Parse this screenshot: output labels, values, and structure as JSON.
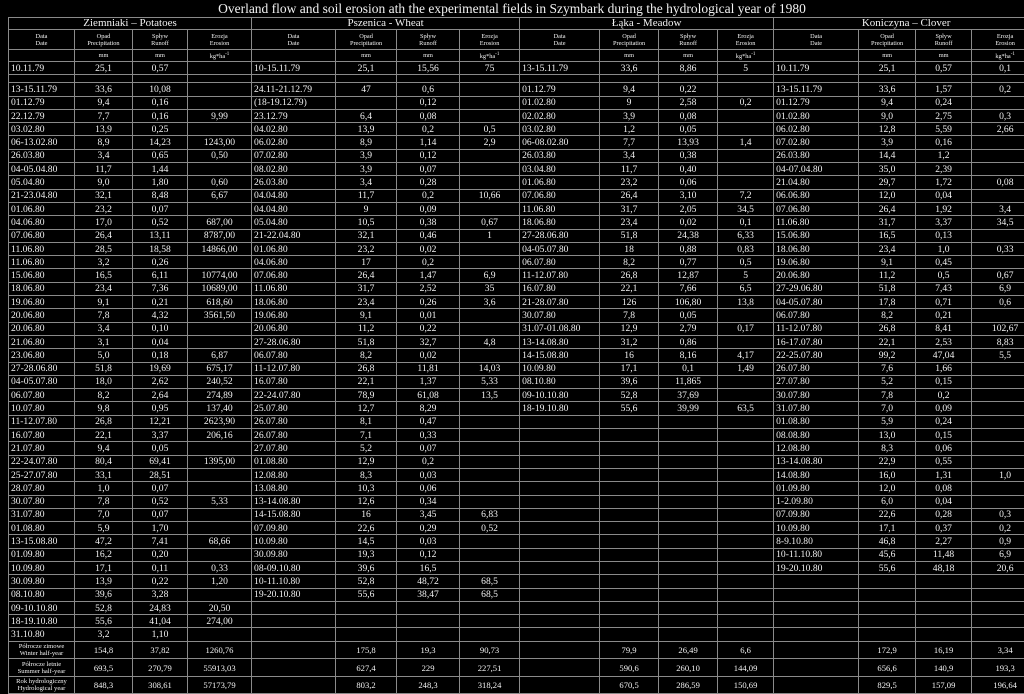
{
  "title": "Overland flow and soil erosion ath the experimental fields in Szymbark during the hydrological year of 1980",
  "crops": [
    "Ziemniaki – Potatoes",
    "Pszenica - Wheat",
    "Łąka - Meadow",
    "Koniczyna – Clover"
  ],
  "columns": [
    {
      "pl": "Data",
      "en": "Date",
      "unit": ""
    },
    {
      "pl": "Opad",
      "en": "Precipitation",
      "unit": "mm"
    },
    {
      "pl": "Spływ",
      "en": "Runoff",
      "unit": "mm"
    },
    {
      "pl": "Erozja",
      "en": "Erosion",
      "unit": "kg*ha",
      "unit_sup": "-1"
    }
  ],
  "rows": [
    [
      "10.11.79",
      "25,1",
      "0,57",
      "",
      "10-15.11.79",
      "25,1",
      "15,56",
      "75",
      "13-15.11.79",
      "33,6",
      "8,86",
      "5",
      "10.11.79",
      "25,1",
      "0,57",
      "0,1"
    ],
    [],
    [
      "13-15.11.79",
      "33,6",
      "10,08",
      "",
      "24.11-21.12.79",
      "47",
      "0,6",
      "",
      "01.12.79",
      "9,4",
      "0,22",
      "",
      "13-15.11.79",
      "33,6",
      "1,57",
      "0,2"
    ],
    [
      "01.12.79",
      "9,4",
      "0,16",
      "",
      "(18-19.12.79)",
      "",
      "0,12",
      "",
      "01.02.80",
      "9",
      "2,58",
      "0,2",
      "01.12.79",
      "9,4",
      "0,24",
      ""
    ],
    [
      "22.12.79",
      "7,7",
      "0,16",
      "9,99",
      "23.12.79",
      "6,4",
      "0,08",
      "",
      "02.02.80",
      "3,9",
      "0,08",
      "",
      "01.02.80",
      "9,0",
      "2,75",
      "0,3"
    ],
    [
      "03.02.80",
      "13,9",
      "0,25",
      "",
      "04.02.80",
      "13,9",
      "0,2",
      "0,5",
      "03.02.80",
      "1,2",
      "0,05",
      "",
      "06.02.80",
      "12,8",
      "5,59",
      "2,66"
    ],
    [
      "06-13.02.80",
      "8,9",
      "14,23",
      "1243,00",
      "06.02.80",
      "8,9",
      "1,14",
      "2,9",
      "06-08.02.80",
      "7,7",
      "13,93",
      "1,4",
      "07.02.80",
      "3,9",
      "0,16",
      ""
    ],
    [
      "26.03.80",
      "3,4",
      "0,65",
      "0,50",
      "07.02.80",
      "3,9",
      "0,12",
      "",
      "26.03.80",
      "3,4",
      "0,38",
      "",
      "26.03.80",
      "14,4",
      "1,2",
      ""
    ],
    [
      "04-05.04.80",
      "11,7",
      "1,44",
      "",
      "08.02.80",
      "3,9",
      "0,07",
      "",
      "03.04.80",
      "11,7",
      "0,40",
      "",
      "04-07.04.80",
      "35,0",
      "2,39",
      ""
    ],
    [
      "05.04.80",
      "9,0",
      "1,80",
      "0,60",
      "26.03.80",
      "3,4",
      "0,28",
      "",
      "01.06.80",
      "23,2",
      "0,06",
      "",
      "21.04.80",
      "29,7",
      "1,72",
      "0,08"
    ],
    [
      "21-23.04.80",
      "32,1",
      "8,48",
      "6,67",
      "04.04.80",
      "11,7",
      "0,2",
      "10,66",
      "07.06.80",
      "26,4",
      "3,10",
      "7,2",
      "06.06.80",
      "12,0",
      "0,04",
      ""
    ],
    [
      "01.06.80",
      "23,2",
      "0,07",
      "",
      "04.04.80",
      "9",
      "0,09",
      "",
      "11.06.80",
      "31,7",
      "2,05",
      "34,5",
      "07.06.80",
      "26,4",
      "1,92",
      "3,4"
    ],
    [
      "04.06.80",
      "17,0",
      "0,52",
      "687,00",
      "05.04.80",
      "10,5",
      "0,38",
      "0,67",
      "18.06.80",
      "23,4",
      "0,02",
      "0,1",
      "11.06.80",
      "31,7",
      "3,37",
      "34,5"
    ],
    [
      "07.06.80",
      "26,4",
      "13,11",
      "8787,00",
      "21-22.04.80",
      "32,1",
      "0,46",
      "1",
      "27-28.06.80",
      "51,8",
      "24,38",
      "6,33",
      "15.06.80",
      "16,5",
      "0,13",
      ""
    ],
    [
      "11.06.80",
      "28,5",
      "18,58",
      "14866,00",
      "01.06.80",
      "23,2",
      "0,02",
      "",
      "04-05.07.80",
      "18",
      "0,88",
      "0,83",
      "18.06.80",
      "23,4",
      "1,0",
      "0,33"
    ],
    [
      "11.06.80",
      "3,2",
      "0,26",
      "",
      "04.06.80",
      "17",
      "0,2",
      "",
      "06.07.80",
      "8,2",
      "0,77",
      "0,5",
      "19.06.80",
      "9,1",
      "0,45",
      ""
    ],
    [
      "15.06.80",
      "16,5",
      "6,11",
      "10774,00",
      "07.06.80",
      "26,4",
      "1,47",
      "6,9",
      "11-12.07.80",
      "26,8",
      "12,87",
      "5",
      "20.06.80",
      "11,2",
      "0,5",
      "0,67"
    ],
    [
      "18.06.80",
      "23,4",
      "7,36",
      "10689,00",
      "11.06.80",
      "31,7",
      "2,52",
      "35",
      "16.07.80",
      "22,1",
      "7,66",
      "6,5",
      "27-29.06.80",
      "51,8",
      "7,43",
      "6,9"
    ],
    [
      "19.06.80",
      "9,1",
      "0,21",
      "618,60",
      "18.06.80",
      "23,4",
      "0,26",
      "3,6",
      "21-28.07.80",
      "126",
      "106,80",
      "13,8",
      "04-05.07.80",
      "17,8",
      "0,71",
      "0,6"
    ],
    [
      "20.06.80",
      "7,8",
      "4,32",
      "3561,50",
      "19.06.80",
      "9,1",
      "0,01",
      "",
      "30.07.80",
      "7,8",
      "0,05",
      "",
      "06.07.80",
      "8,2",
      "0,21",
      ""
    ],
    [
      "20.06.80",
      "3,4",
      "0,10",
      "",
      "20.06.80",
      "11,2",
      "0,22",
      "",
      "31.07-01.08.80",
      "12,9",
      "2,79",
      "0,17",
      "11-12.07.80",
      "26,8",
      "8,41",
      "102,67"
    ],
    [
      "21.06.80",
      "3,1",
      "0,04",
      "",
      "27-28.06.80",
      "51,8",
      "32,7",
      "4,8",
      "13-14.08.80",
      "31,2",
      "0,86",
      "",
      "16-17.07.80",
      "22,1",
      "2,53",
      "8,83"
    ],
    [
      "23.06.80",
      "5,0",
      "0,18",
      "6,87",
      "06.07.80",
      "8,2",
      "0,02",
      "",
      "14-15.08.80",
      "16",
      "8,16",
      "4,17",
      "22-25.07.80",
      "99,2",
      "47,04",
      "5,5"
    ],
    [
      "27-28.06.80",
      "51,8",
      "19,69",
      "675,17",
      "11-12.07.80",
      "26,8",
      "11,81",
      "14,03",
      "10.09.80",
      "17,1",
      "0,1",
      "1,49",
      "26.07.80",
      "7,6",
      "1,66",
      ""
    ],
    [
      "04-05.07.80",
      "18,0",
      "2,62",
      "240,52",
      "16.07.80",
      "22,1",
      "1,37",
      "5,33",
      "08.10.80",
      "39,6",
      "11,865",
      "",
      "27.07.80",
      "5,2",
      "0,15",
      ""
    ],
    [
      "06.07.80",
      "8,2",
      "2,64",
      "274,89",
      "22-24.07.80",
      "78,9",
      "61,08",
      "13,5",
      "09-10.10.80",
      "52,8",
      "37,69",
      "",
      "30.07.80",
      "7,8",
      "0,2",
      ""
    ],
    [
      "10.07.80",
      "9,8",
      "0,95",
      "137,40",
      "25.07.80",
      "12,7",
      "8,29",
      "",
      "18-19.10.80",
      "55,6",
      "39,99",
      "63,5",
      "31.07.80",
      "7,0",
      "0,09",
      ""
    ],
    [
      "11-12.07.80",
      "26,8",
      "12,21",
      "2623,90",
      "26.07.80",
      "8,1",
      "0,47",
      "",
      "",
      "",
      "",
      "",
      "01.08.80",
      "5,9",
      "0,24",
      ""
    ],
    [
      "16.07.80",
      "22,1",
      "3,37",
      "206,16",
      "26.07.80",
      "7,1",
      "0,33",
      "",
      "",
      "",
      "",
      "",
      "08.08.80",
      "13,0",
      "0,15",
      ""
    ],
    [
      "21.07.80",
      "9,4",
      "0,05",
      "",
      "27.07.80",
      "5,2",
      "0,07",
      "",
      "",
      "",
      "",
      "",
      "12.08.80",
      "8,3",
      "0,06",
      ""
    ],
    [
      "22-24.07.80",
      "80,4",
      "69,41",
      "1395,00",
      "01.08.80",
      "12,9",
      "0,2",
      "",
      "",
      "",
      "",
      "",
      "13-14.08.80",
      "22,9",
      "0,55",
      ""
    ],
    [
      "25-27.07.80",
      "33,1",
      "28,51",
      "",
      "12.08.80",
      "8,3",
      "0,03",
      "",
      "",
      "",
      "",
      "",
      "14.08.80",
      "16,0",
      "1,31",
      "1,0"
    ],
    [
      "28.07.80",
      "1,0",
      "0,07",
      "",
      "13.08.80",
      "10,3",
      "0,06",
      "",
      "",
      "",
      "",
      "",
      "01.09.80",
      "12,0",
      "0,08",
      ""
    ],
    [
      "30.07.80",
      "7,8",
      "0,52",
      "5,33",
      "13-14.08.80",
      "12,6",
      "0,34",
      "",
      "",
      "",
      "",
      "",
      "1-2.09.80",
      "6,0",
      "0,04",
      ""
    ],
    [
      "31.07.80",
      "7,0",
      "0,07",
      "",
      "14-15.08.80",
      "16",
      "3,45",
      "6,83",
      "",
      "",
      "",
      "",
      "07.09.80",
      "22,6",
      "0,28",
      "0,3"
    ],
    [
      "01.08.80",
      "5,9",
      "1,70",
      "",
      "07.09.80",
      "22,6",
      "0,29",
      "0,52",
      "",
      "",
      "",
      "",
      "10.09.80",
      "17,1",
      "0,37",
      "0,2"
    ],
    [
      "13-15.08.80",
      "47,2",
      "7,41",
      "68,66",
      "10.09.80",
      "14,5",
      "0,03",
      "",
      "",
      "",
      "",
      "",
      "8-9.10.80",
      "46,8",
      "2,27",
      "0,9"
    ],
    [
      "01.09.80",
      "16,2",
      "0,20",
      "",
      "30.09.80",
      "19,3",
      "0,12",
      "",
      "",
      "",
      "",
      "",
      "10-11.10.80",
      "45,6",
      "11,48",
      "6,9"
    ],
    [
      "10.09.80",
      "17,1",
      "0,11",
      "0,33",
      "08-09.10.80",
      "39,6",
      "16,5",
      "",
      "",
      "",
      "",
      "",
      "19-20.10.80",
      "55,6",
      "48,18",
      "20,6"
    ],
    [
      "30.09.80",
      "13,9",
      "0,22",
      "1,20",
      "10-11.10.80",
      "52,8",
      "48,72",
      "68,5",
      "",
      "",
      "",
      "",
      "",
      "",
      "",
      ""
    ],
    [
      "08.10.80",
      "39,6",
      "3,28",
      "",
      "19-20.10.80",
      "55,6",
      "38,47",
      "68,5",
      "",
      "",
      "",
      "",
      "",
      "",
      "",
      ""
    ],
    [
      "09-10.10.80",
      "52,8",
      "24,83",
      "20,50",
      "",
      "",
      "",
      "",
      "",
      "",
      "",
      "",
      "",
      "",
      "",
      ""
    ],
    [
      "18-19.10.80",
      "55,6",
      "41,04",
      "274,00",
      "",
      "",
      "",
      "",
      "",
      "",
      "",
      "",
      "",
      "",
      "",
      ""
    ],
    [
      "31.10.80",
      "3,2",
      "1,10",
      "",
      "",
      "",
      "",
      "",
      "",
      "",
      "",
      "",
      "",
      "",
      "",
      ""
    ]
  ],
  "summary": [
    [
      "Półrocze zimowe Winter half-year",
      "154,8",
      "37,82",
      "1260,76",
      "",
      "175,8",
      "19,3",
      "90,73",
      "",
      "79,9",
      "26,49",
      "6,6",
      "",
      "172,9",
      "16,19",
      "3,34"
    ],
    [
      "Półrocze letnie Summer half-year",
      "693,5",
      "270,79",
      "55913,03",
      "",
      "627,4",
      "229",
      "227,51",
      "",
      "590,6",
      "260,10",
      "144,09",
      "",
      "656,6",
      "140,9",
      "193,3"
    ],
    [
      "Rok hydrologiczny Hydrological year",
      "848,3",
      "308,61",
      "57173,79",
      "",
      "803,2",
      "248,3",
      "318,24",
      "",
      "670,5",
      "286,59",
      "150,69",
      "",
      "829,5",
      "157,09",
      "196,64"
    ]
  ]
}
